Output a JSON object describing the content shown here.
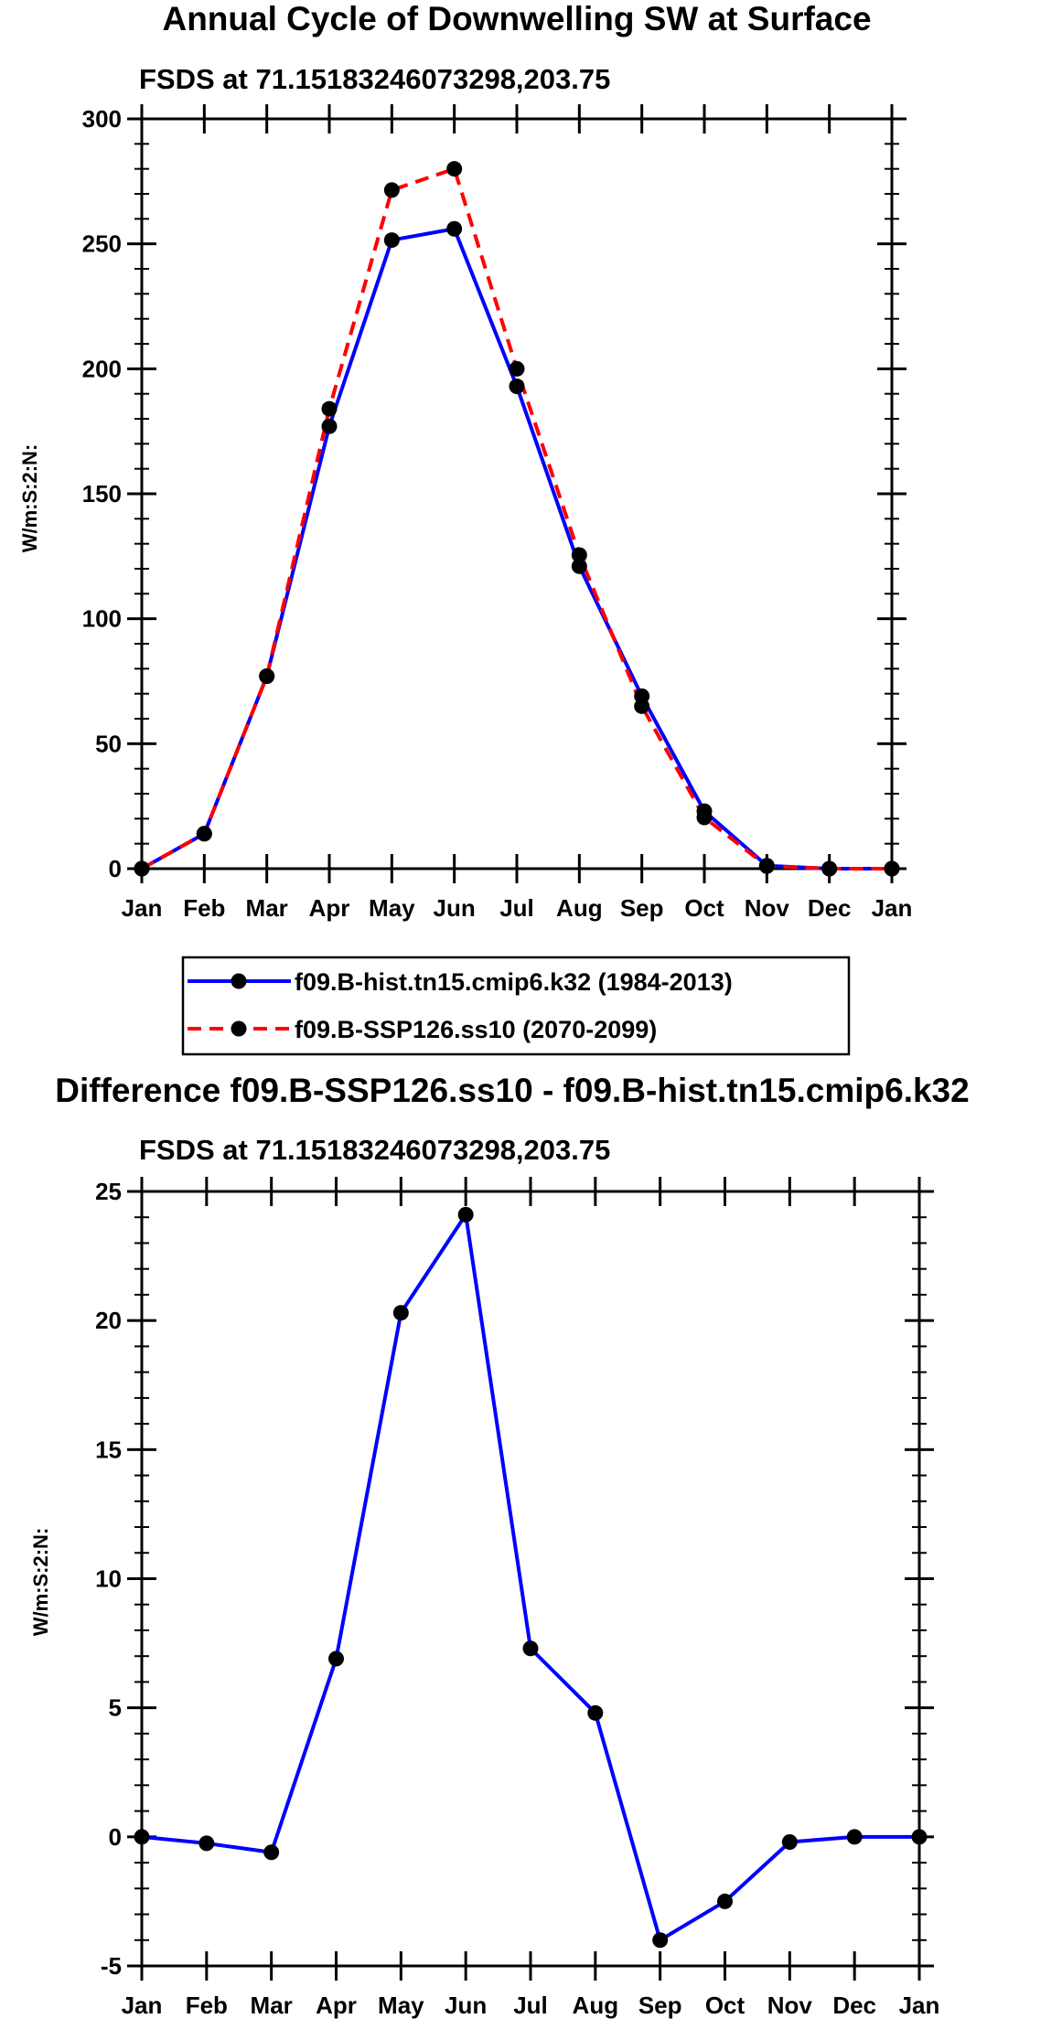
{
  "chart_data": [
    {
      "type": "line",
      "title": "Annual Cycle of Downwelling SW at Surface",
      "subtitle": "FSDS at 71.15183246073298,203.75",
      "xlabel": "",
      "ylabel": "W/m:S:2:N:",
      "categories": [
        "Jan",
        "Feb",
        "Mar",
        "Apr",
        "May",
        "Jun",
        "Jul",
        "Aug",
        "Sep",
        "Oct",
        "Nov",
        "Dec",
        "Jan"
      ],
      "ylim": [
        0,
        300
      ],
      "yticks": [
        0,
        50,
        100,
        150,
        200,
        250,
        300
      ],
      "series": [
        {
          "name": "f09.B-hist.tn15.cmip6.k32 (1984-2013)",
          "color": "#0000ff",
          "dash": "solid",
          "values": [
            0,
            14,
            77,
            177,
            251.5,
            256,
            193,
            121,
            69,
            23,
            1.2,
            0,
            0
          ]
        },
        {
          "name": "f09.B-SSP126.ss10 (2070-2099)",
          "color": "#ff0000",
          "dash": "dashed",
          "values": [
            0,
            14,
            77,
            184,
            271.5,
            280,
            200,
            125.5,
            65,
            20.5,
            1.0,
            0,
            0
          ]
        }
      ]
    },
    {
      "type": "line",
      "title": "Difference f09.B-SSP126.ss10 - f09.B-hist.tn15.cmip6.k32",
      "subtitle": "FSDS at 71.15183246073298,203.75",
      "xlabel": "",
      "ylabel": "W/m:S:2:N:",
      "categories": [
        "Jan",
        "Feb",
        "Mar",
        "Apr",
        "May",
        "Jun",
        "Jul",
        "Aug",
        "Sep",
        "Oct",
        "Nov",
        "Dec",
        "Jan"
      ],
      "ylim": [
        -5,
        25
      ],
      "yticks": [
        -5,
        0,
        5,
        10,
        15,
        20,
        25
      ],
      "series": [
        {
          "name": "Difference",
          "color": "#0000ff",
          "dash": "solid",
          "values": [
            0,
            -0.25,
            -0.6,
            6.9,
            20.3,
            24.1,
            7.3,
            4.8,
            -4.0,
            -2.5,
            -0.2,
            0,
            0
          ]
        }
      ]
    }
  ]
}
